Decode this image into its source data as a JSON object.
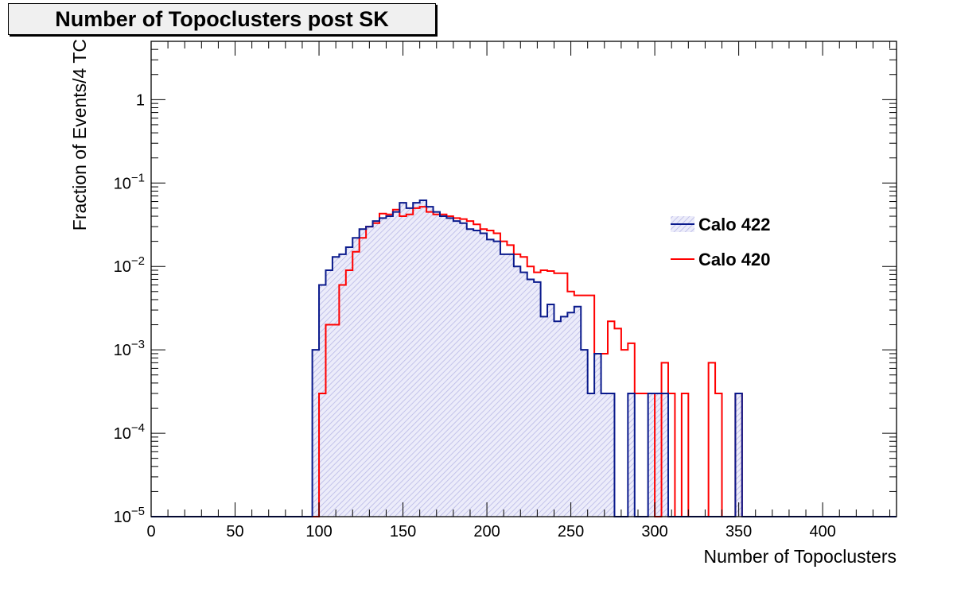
{
  "chart_data": {
    "type": "histogram",
    "title": "Number of Topoclusters post SK",
    "xlabel": "Number of Topoclusters",
    "ylabel": "Fraction of Events/4 TC",
    "xlim": [
      0,
      444
    ],
    "ylim": [
      1e-05,
      5
    ],
    "yscale": "log",
    "bin_width": 4,
    "x_ticks": [
      0,
      50,
      100,
      150,
      200,
      250,
      300,
      350,
      400
    ],
    "y_ticks": [
      {
        "value": 1,
        "label": "1",
        "exp": ""
      },
      {
        "value": 0.1,
        "label": "10",
        "exp": "−1"
      },
      {
        "value": 0.01,
        "label": "10",
        "exp": "−2"
      },
      {
        "value": 0.001,
        "label": "10",
        "exp": "−3"
      },
      {
        "value": 0.0001,
        "label": "10",
        "exp": "−4"
      },
      {
        "value": 1e-05,
        "label": "10",
        "exp": "−5"
      }
    ],
    "grid": false,
    "legend_position": "right",
    "series": [
      {
        "name": "Calo 422",
        "color": "#0a1a8c",
        "fill": "hatched",
        "fill_color": "#c9c9ee",
        "bins": [
          [
            96,
            0.001
          ],
          [
            100,
            0.006
          ],
          [
            104,
            0.009
          ],
          [
            108,
            0.013
          ],
          [
            112,
            0.014
          ],
          [
            116,
            0.017
          ],
          [
            120,
            0.022
          ],
          [
            124,
            0.028
          ],
          [
            128,
            0.03
          ],
          [
            132,
            0.035
          ],
          [
            136,
            0.038
          ],
          [
            140,
            0.04
          ],
          [
            144,
            0.045
          ],
          [
            148,
            0.058
          ],
          [
            152,
            0.05
          ],
          [
            156,
            0.058
          ],
          [
            160,
            0.062
          ],
          [
            164,
            0.052
          ],
          [
            168,
            0.045
          ],
          [
            172,
            0.04
          ],
          [
            176,
            0.038
          ],
          [
            180,
            0.035
          ],
          [
            184,
            0.033
          ],
          [
            188,
            0.028
          ],
          [
            192,
            0.027
          ],
          [
            196,
            0.025
          ],
          [
            200,
            0.021
          ],
          [
            204,
            0.02
          ],
          [
            208,
            0.014
          ],
          [
            212,
            0.014
          ],
          [
            216,
            0.01
          ],
          [
            220,
            0.0085
          ],
          [
            224,
            0.007
          ],
          [
            228,
            0.0065
          ],
          [
            232,
            0.0025
          ],
          [
            236,
            0.0035
          ],
          [
            240,
            0.0022
          ],
          [
            244,
            0.0025
          ],
          [
            248,
            0.0028
          ],
          [
            252,
            0.0033
          ],
          [
            256,
            0.001
          ],
          [
            260,
            0.0003
          ],
          [
            264,
            0.0009
          ],
          [
            268,
            0.0003
          ],
          [
            272,
            0.0003
          ],
          [
            276,
            0
          ],
          [
            280,
            0
          ],
          [
            284,
            0.0003
          ],
          [
            288,
            0
          ],
          [
            292,
            0
          ],
          [
            296,
            0.0003
          ],
          [
            300,
            0.0003
          ],
          [
            304,
            0.0003
          ],
          [
            308,
            0
          ],
          [
            312,
            0
          ],
          [
            316,
            0
          ],
          [
            320,
            0
          ],
          [
            324,
            0
          ],
          [
            328,
            0
          ],
          [
            332,
            0
          ],
          [
            336,
            0
          ],
          [
            340,
            0
          ],
          [
            344,
            0
          ],
          [
            348,
            0.0003
          ],
          [
            352,
            0
          ]
        ]
      },
      {
        "name": "Calo 420",
        "color": "#ff0000",
        "fill": "none",
        "bins": [
          [
            96,
            0
          ],
          [
            100,
            0.0003
          ],
          [
            104,
            0.002
          ],
          [
            108,
            0.002
          ],
          [
            112,
            0.006
          ],
          [
            116,
            0.009
          ],
          [
            120,
            0.015
          ],
          [
            124,
            0.022
          ],
          [
            128,
            0.03
          ],
          [
            132,
            0.033
          ],
          [
            136,
            0.043
          ],
          [
            140,
            0.042
          ],
          [
            144,
            0.048
          ],
          [
            148,
            0.04
          ],
          [
            152,
            0.042
          ],
          [
            156,
            0.05
          ],
          [
            160,
            0.052
          ],
          [
            164,
            0.045
          ],
          [
            168,
            0.042
          ],
          [
            172,
            0.042
          ],
          [
            176,
            0.04
          ],
          [
            180,
            0.038
          ],
          [
            184,
            0.037
          ],
          [
            188,
            0.035
          ],
          [
            192,
            0.032
          ],
          [
            196,
            0.028
          ],
          [
            200,
            0.027
          ],
          [
            204,
            0.025
          ],
          [
            208,
            0.02
          ],
          [
            212,
            0.018
          ],
          [
            216,
            0.014
          ],
          [
            220,
            0.013
          ],
          [
            224,
            0.01
          ],
          [
            228,
            0.0085
          ],
          [
            232,
            0.009
          ],
          [
            236,
            0.0088
          ],
          [
            240,
            0.0083
          ],
          [
            244,
            0.0083
          ],
          [
            248,
            0.005
          ],
          [
            252,
            0.0045
          ],
          [
            256,
            0.0045
          ],
          [
            260,
            0.0045
          ],
          [
            264,
            0.0009
          ],
          [
            268,
            0.0009
          ],
          [
            272,
            0.0022
          ],
          [
            276,
            0.0018
          ],
          [
            280,
            0.001
          ],
          [
            284,
            0.0012
          ],
          [
            288,
            0.0003
          ],
          [
            292,
            0.0003
          ],
          [
            296,
            0.0003
          ],
          [
            300,
            0
          ],
          [
            304,
            0.0007
          ],
          [
            308,
            0.0003
          ],
          [
            312,
            0
          ],
          [
            316,
            0.0003
          ],
          [
            320,
            0
          ],
          [
            324,
            0
          ],
          [
            328,
            0
          ],
          [
            332,
            0.0007
          ],
          [
            336,
            0.0003
          ],
          [
            340,
            0
          ],
          [
            344,
            0
          ],
          [
            348,
            0.0003
          ],
          [
            352,
            0
          ],
          [
            356,
            0
          ],
          [
            360,
            0
          ],
          [
            364,
            0
          ]
        ]
      }
    ]
  }
}
